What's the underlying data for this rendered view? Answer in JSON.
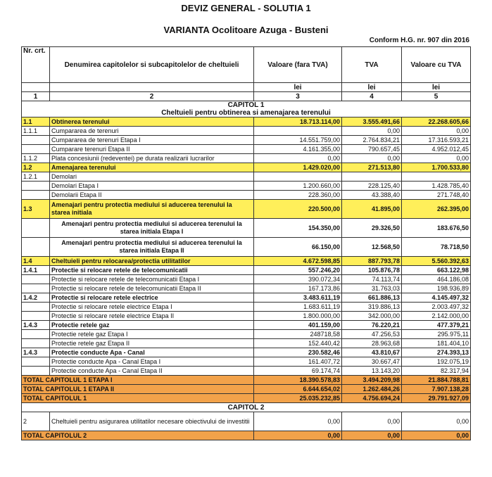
{
  "header": {
    "title": "DEVIZ GENERAL - SOLUTIA 1",
    "subtitle": "VARIANTA Ocolitoare Azuga - Busteni",
    "note": "Conform H.G. nr. 907 din 2016"
  },
  "table": {
    "columns": [
      "Nr. crt.",
      "Denumirea capitolelor si subcapitolelor de cheltuieli",
      "Valoare (fara TVA)",
      "TVA",
      "Valoare cu TVA"
    ],
    "units": [
      "lei",
      "lei",
      "lei"
    ],
    "numbers": [
      "1",
      "2",
      "3",
      "4",
      "5"
    ],
    "rows": [
      {
        "section": "CAPITOL 1",
        "subtitle": "Cheltuieli pentru obtinerea si amenajarea terenului"
      },
      {
        "nr": "1.1",
        "name": "Obtinerea terenului",
        "values": [
          "18.713.114,00",
          "3.555.491,66",
          "22.268.605,66"
        ]
      },
      {
        "nr": "1.1.1",
        "name": "Cumpararea de terenuri",
        "values": [
          null,
          "0,00",
          "0,00"
        ]
      },
      {
        "name": "Cumpararea de terenuri  Etapa I",
        "values": [
          "14.551.759,00",
          "2.764.834,21",
          "17.316.593,21"
        ]
      },
      {
        "name": "Cumparare terenuri Etapa II",
        "values": [
          "4.161.355,00",
          "790.657,45",
          "4.952.012,45"
        ]
      },
      {
        "nr": "1.1.2",
        "name": "Plata concesiunii (redeventei) pe durata realizarii lucrarilor",
        "values": [
          "0,00",
          "0,00",
          "0,00"
        ]
      },
      {
        "nr": "1.2",
        "name": "Amenajarea terenului",
        "values": [
          "1.429.020,00",
          "271.513,80",
          "1.700.533,80"
        ]
      },
      {
        "nr": "1.2.1",
        "name": "Demolari"
      },
      {
        "name": "Demolari Etapa I",
        "values": [
          "1.200.660,00",
          "228.125,40",
          "1.428.785,40"
        ]
      },
      {
        "name": "Demolarii Etapa II",
        "values": [
          "228.360,00",
          "43.388,40",
          "271.748,40"
        ]
      },
      {
        "nr": "1.3",
        "name": "Amenajari pentru protectia mediului si aducerea terenului la starea initiala",
        "values": [
          "220.500,00",
          "41.895,00",
          "262.395,00"
        ]
      },
      {
        "name": "Amenajari pentru protectia mediului si aducerea terenului la starea initiala Etapa I",
        "values": [
          "154.350,00",
          "29.326,50",
          "183.676,50"
        ]
      },
      {
        "name": "Amenajari pentru protectia mediului si aducerea terenului la starea initiala Etapa II",
        "values": [
          "66.150,00",
          "12.568,50",
          "78.718,50"
        ]
      },
      {
        "nr": "1.4",
        "name": "Cheltuieli pentru relocarea/protectia utilitatilor",
        "values": [
          "4.672.598,85",
          "887.793,78",
          "5.560.392,63"
        ]
      },
      {
        "nr": "1.4.1",
        "name": "Protectie si relocare retele de telecomunicatii",
        "values": [
          "557.246,20",
          "105.876,78",
          "663.122,98"
        ]
      },
      {
        "name": "Protectie si relocare retele de telecomunicatii Etapa I",
        "values": [
          "390.072,34",
          "74.113,74",
          "464.186,08"
        ]
      },
      {
        "name": "Protectie si relocare retele de telecomunicatii Etapa II",
        "values": [
          "167.173,86",
          "31.763,03",
          "198.936,89"
        ]
      },
      {
        "nr": "1.4.2",
        "name": "Protectie si relocare retele electrice",
        "values": [
          "3.483.611,19",
          "661.886,13",
          "4.145.497,32"
        ]
      },
      {
        "name": "Protectie si relocare retele electrice Etapa I",
        "values": [
          "1.683.611,19",
          "319.886,13",
          "2.003.497,32"
        ]
      },
      {
        "name": "Protectie si relocare retele electrice Etapa II",
        "values": [
          "1.800.000,00",
          "342.000,00",
          "2.142.000,00"
        ]
      },
      {
        "nr": "1.4.3",
        "name": "Protectie retele gaz",
        "values": [
          "401.159,00",
          "76.220,21",
          "477.379,21"
        ]
      },
      {
        "name": "Protectie retele gaz Etapa I",
        "values": [
          "248718,58",
          "47.256,53",
          "295.975,11"
        ]
      },
      {
        "name": "Protectie retele gaz Etapa II",
        "values": [
          "152.440,42",
          "28.963,68",
          "181.404,10"
        ]
      },
      {
        "nr": "1.4.3",
        "name": "Protectie conducte Apa - Canal",
        "values": [
          "230.582,46",
          "43.810,67",
          "274.393,13"
        ]
      },
      {
        "name": "Protectie conducte Apa - Canal Etapa I",
        "values": [
          "161.407,72",
          "30.667,47",
          "192.075,19"
        ]
      },
      {
        "name": "Protectie conducte Apa - Canal Etapa II",
        "values": [
          "69.174,74",
          "13.143,20",
          "82.317,94"
        ]
      },
      {
        "total": "TOTAL CAPITOLUL 1 ETAPA I",
        "values": [
          "18.390.578,83",
          "3.494.209,98",
          "21.884.788,81"
        ]
      },
      {
        "total": "TOTAL CAPITOLUL 1 ETAPA II",
        "values": [
          "6.644.654,02",
          "1.262.484,26",
          "7.907.138,28"
        ]
      },
      {
        "total": "TOTAL CAPITOLUL 1",
        "values": [
          "25.035.232,85",
          "4.756.694,24",
          "29.791.927,09"
        ]
      },
      {
        "section": "CAPITOL 2"
      },
      {
        "nr": "2",
        "name": "Cheltuieli pentru asigurarea utilitatilor necesare obiectivului de investitii",
        "values": [
          "0,00",
          "0,00",
          "0,00"
        ]
      },
      {
        "total": "TOTAL CAPITOLUL 2",
        "values": [
          "0,00",
          "0,00",
          "0,00"
        ]
      }
    ]
  }
}
